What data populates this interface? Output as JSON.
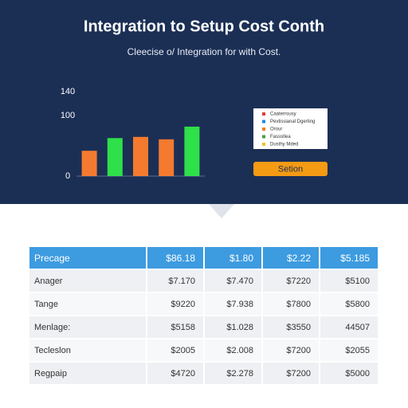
{
  "header": {
    "title": "Integration to Setup Cost Conth",
    "subtitle": "Cleecise o/ Integration for with Cost."
  },
  "chart_data": {
    "type": "bar",
    "categories": [
      null,
      null,
      null,
      null,
      null
    ],
    "values": [
      42,
      63,
      65,
      61,
      82
    ],
    "colors": [
      "#f47a2f",
      "#2ee04a",
      "#f47a2f",
      "#f47a2f",
      "#2ee04a"
    ],
    "ylim": [
      0,
      140
    ],
    "yticks": [
      0,
      100,
      140
    ],
    "grid": false,
    "legend": [
      {
        "name": "Caaterrousy",
        "color": "#e53935"
      },
      {
        "name": "Pevtissianal Dgerting",
        "color": "#1e88e5"
      },
      {
        "name": "Orour",
        "color": "#f57c20"
      },
      {
        "name": "Fassstlea",
        "color": "#43a047"
      },
      {
        "name": "Dusthy Mded",
        "color": "#e8c62e"
      }
    ]
  },
  "button": "Setion",
  "table": {
    "header": [
      "Precage",
      "$86.18",
      "$1.80",
      "$2.22",
      "$5.185"
    ],
    "rows": [
      [
        "Anager",
        "$7.170",
        "$7.470",
        "$7220",
        "$5100"
      ],
      [
        "Tange",
        "$9220",
        "$7.938",
        "$7800",
        "$5800"
      ],
      [
        "Menlage:",
        "$5158",
        "$1.028",
        "$3550",
        "44507"
      ],
      [
        "Tecleslon",
        "$2005",
        "$2.008",
        "$7200",
        "$2055"
      ],
      [
        "Regpaip",
        "$4720",
        "$2.278",
        "$7200",
        "$5000"
      ]
    ]
  }
}
